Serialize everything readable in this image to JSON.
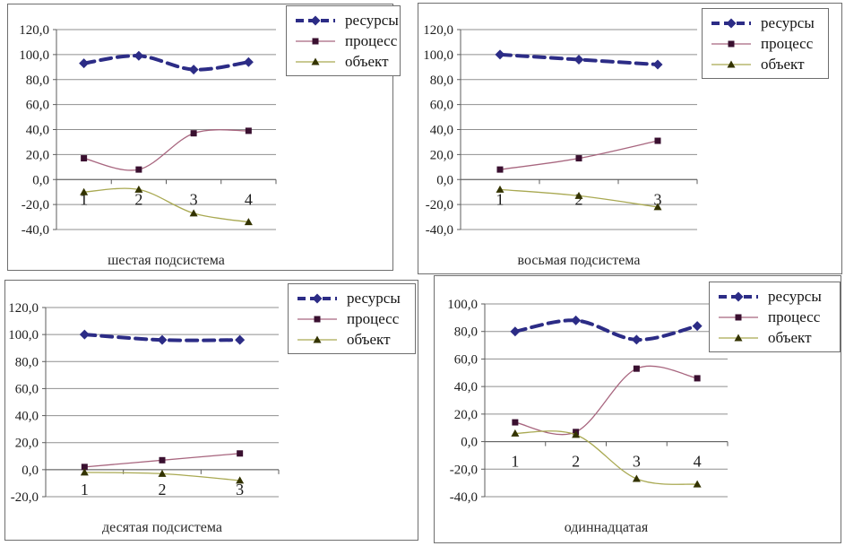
{
  "page": {
    "background": "#ffffff"
  },
  "colors": {
    "resources_line": "#2c2c86",
    "resources_marker": "#2c2c86",
    "process_line": "#a8667f",
    "process_marker": "#3a1030",
    "object_line": "#a9a952",
    "object_marker": "#333300",
    "gridline": "#8f8f8f",
    "axis": "#5c5c5c",
    "tick_text": "#1c1c1c",
    "panel_border": "#6e6e6e"
  },
  "chart_data": [
    {
      "type": "line",
      "title": "шестая подсистема",
      "x_labels": [
        "1",
        "2",
        "3",
        "4"
      ],
      "y_axis": {
        "min": -40,
        "max": 120,
        "step": 20,
        "tick_labels": [
          "-40,0",
          "-20,0",
          "0,0",
          "20,0",
          "40,0",
          "60,0",
          "80,0",
          "100,0",
          "120,0"
        ]
      },
      "grid": "horizontal",
      "legend_position": "top-right",
      "series": [
        {
          "name": "ресурсы",
          "style": "resources",
          "values": [
            93,
            99,
            88,
            94
          ]
        },
        {
          "name": "процесс",
          "style": "process",
          "values": [
            17,
            8,
            37,
            39
          ]
        },
        {
          "name": "объект",
          "style": "object",
          "values": [
            -10,
            -8,
            -27,
            -34
          ]
        }
      ]
    },
    {
      "type": "line",
      "title": "восьмая подсистема",
      "x_labels": [
        "1",
        "2",
        "3"
      ],
      "y_axis": {
        "min": -40,
        "max": 120,
        "step": 20,
        "tick_labels": [
          "-40,0",
          "-20,0",
          "0,0",
          "20,0",
          "40,0",
          "60,0",
          "80,0",
          "100,0",
          "120,0"
        ]
      },
      "grid": "horizontal",
      "legend_position": "top-right",
      "series": [
        {
          "name": "ресурсы",
          "style": "resources",
          "values": [
            100,
            96,
            92
          ]
        },
        {
          "name": "процесс",
          "style": "process",
          "values": [
            8,
            17,
            31
          ]
        },
        {
          "name": "объект",
          "style": "object",
          "values": [
            -8,
            -13,
            -22
          ]
        }
      ]
    },
    {
      "type": "line",
      "title": "десятая подсистема",
      "x_labels": [
        "1",
        "2",
        "3"
      ],
      "y_axis": {
        "min": -20,
        "max": 120,
        "step": 20,
        "tick_labels": [
          "-20,0",
          "0,0",
          "20,0",
          "40,0",
          "60,0",
          "80,0",
          "100,0",
          "120,0"
        ]
      },
      "grid": "horizontal",
      "legend_position": "top-right",
      "series": [
        {
          "name": "ресурсы",
          "style": "resources",
          "values": [
            100,
            96,
            96
          ]
        },
        {
          "name": "процесс",
          "style": "process",
          "values": [
            2,
            7,
            12
          ]
        },
        {
          "name": "объект",
          "style": "object",
          "values": [
            -2,
            -3,
            -8
          ]
        }
      ]
    },
    {
      "type": "line",
      "title": "одиннадцатая",
      "x_labels": [
        "1",
        "2",
        "3",
        "4"
      ],
      "y_axis": {
        "min": -40,
        "max": 100,
        "step": 20,
        "tick_labels": [
          "-40,0",
          "-20,0",
          "0,0",
          "20,0",
          "40,0",
          "60,0",
          "80,0",
          "100,0"
        ]
      },
      "grid": "horizontal",
      "legend_position": "top-right",
      "series": [
        {
          "name": "ресурсы",
          "style": "resources",
          "values": [
            80,
            88,
            74,
            84
          ]
        },
        {
          "name": "процесс",
          "style": "process",
          "values": [
            14,
            7,
            53,
            46
          ]
        },
        {
          "name": "объект",
          "style": "object",
          "values": [
            6,
            5,
            -27,
            -31
          ]
        }
      ]
    }
  ]
}
